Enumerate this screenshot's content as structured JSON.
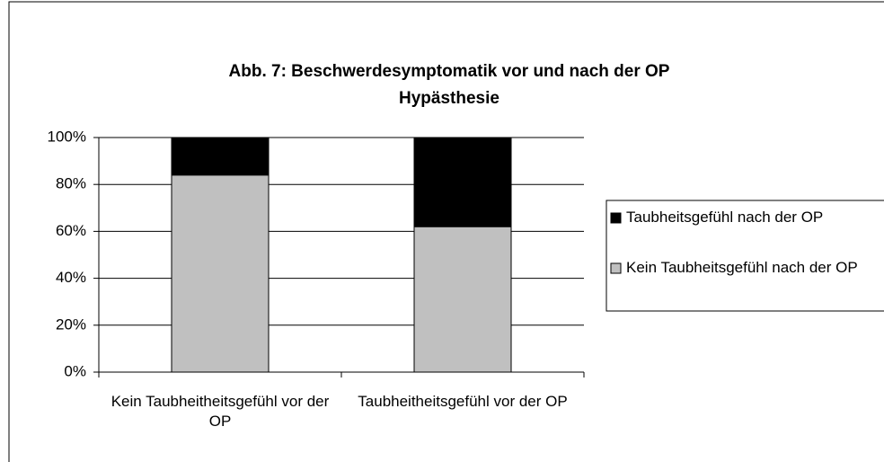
{
  "chart_data": {
    "type": "stacked_bar",
    "title": "Abb. 7: Beschwerdesymptomatik vor und nach der OP",
    "subtitle": "Hypästhesie",
    "categories": [
      "Kein Taubheitheitsgefühl vor der OP",
      "Taubheitheitsgefühl vor der OP"
    ],
    "series": [
      {
        "name": "Kein Taubheitsgefühl nach der OP",
        "color": "#c0c0c0",
        "values": [
          84,
          62
        ]
      },
      {
        "name": "Taubheitsgefühl nach der OP",
        "color": "#000000",
        "values": [
          16,
          38
        ]
      }
    ],
    "ylim": [
      0,
      100
    ],
    "yticks": [
      {
        "value": 0,
        "label": "0%"
      },
      {
        "value": 20,
        "label": "20%"
      },
      {
        "value": 40,
        "label": "40%"
      },
      {
        "value": 60,
        "label": "60%"
      },
      {
        "value": 80,
        "label": "80%"
      },
      {
        "value": 100,
        "label": "100%"
      }
    ],
    "grid": true,
    "legend": "right"
  }
}
